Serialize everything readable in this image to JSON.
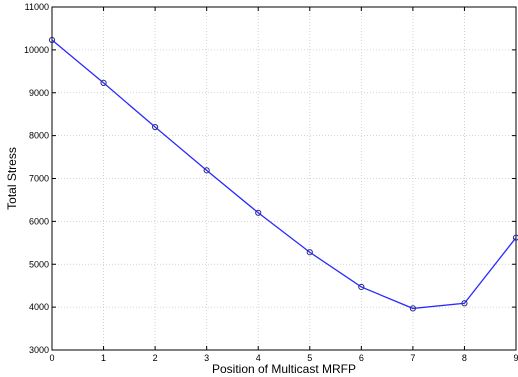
{
  "chart_data": {
    "type": "line",
    "title": "",
    "xlabel": "Position of Multicast MRFP",
    "ylabel": "Total Stress",
    "xlim": [
      0,
      9
    ],
    "ylim": [
      3000,
      11000
    ],
    "xticks": [
      0,
      1,
      2,
      3,
      4,
      5,
      6,
      7,
      8,
      9
    ],
    "yticks": [
      3000,
      4000,
      5000,
      6000,
      7000,
      8000,
      9000,
      10000,
      11000
    ],
    "grid": true,
    "marker": "circle",
    "colors": {
      "line": "#2a2aff",
      "marker": "#2a2a8a",
      "grid": "#c8c8c8",
      "axis": "#000000"
    },
    "series": [
      {
        "x": [
          0,
          1,
          2,
          3,
          4,
          5,
          6,
          7,
          8,
          9
        ],
        "values": [
          10230,
          9230,
          8200,
          7190,
          6200,
          5280,
          4470,
          3970,
          4090,
          5620
        ]
      }
    ]
  }
}
